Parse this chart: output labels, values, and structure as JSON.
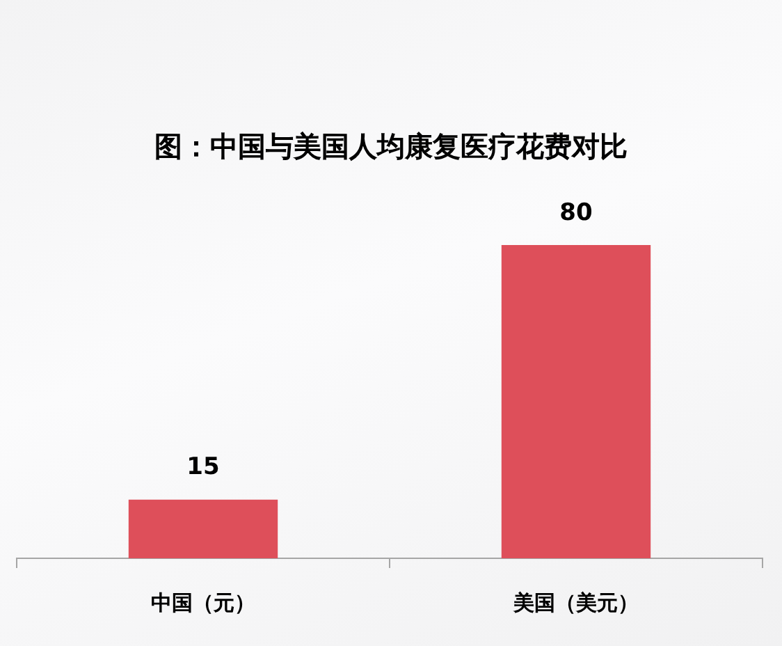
{
  "chart_data": {
    "type": "bar",
    "title": "图：中国与美国人均康复医疗花费对比",
    "categories": [
      "中国（元）",
      "美国（美元）"
    ],
    "values": [
      15,
      80
    ],
    "color": "#de4f5a",
    "data_labels": true,
    "tick_labels": "x"
  }
}
